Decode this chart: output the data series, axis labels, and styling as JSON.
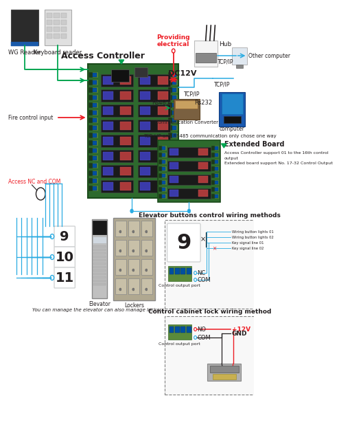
{
  "bg_color": "#ffffff",
  "blue": "#29abe2",
  "green": "#00a651",
  "red": "#ed1c24",
  "dark": "#231f20",
  "gray": "#808080",
  "lgray": "#d1d3d4",
  "pcb_green": "#2d6a2d",
  "pcb_edge": "#1a4a1a",
  "term_green": "#5a8a3a",
  "term_dark": "#1a3a1a",
  "term_blue": "#0050a0",
  "labels": {
    "wg_reader": "WG Reader",
    "kb_reader": "Keyboard reader",
    "access_ctrl": "Access Controller",
    "dc12v": "DC12V",
    "providing": "Providing\nelectrical",
    "hub": "Hub",
    "tcp_ip": "TCP/IP",
    "other_comp": "Other computer",
    "rs485": "Rs485",
    "rs232": "Rs232",
    "comm_conv": "Communication Converter",
    "computer": "computer",
    "tcp_note": "TCP / IP and RS485 communication only chose one way",
    "access_nc": "Access NC and COM",
    "ext_board": "Extended Board",
    "ext_desc1": "Access Controller support 01 to the 16th control",
    "ext_desc1b": "output",
    "ext_desc2": "Extended board support No. 17-32 Control Output",
    "floor9": "9",
    "floor10": "10",
    "floor11": "11",
    "elevator_lbl": "Elevator",
    "lockers_lbl": "Lockers",
    "bottom_note": "You can manage the elevator can also manage lockers",
    "elev_btn_title": "Elevator buttons control wiring methods",
    "btn1": "Wiring button lights 01",
    "btn2": "Wiring button lights 02",
    "key1": "Key signal line 01",
    "key2": "Key signal line 02",
    "nc": "NC",
    "com": "COM",
    "ctrl_port": "Control output port",
    "lock_title": "Control cabinet lock wiring method",
    "no": "NO",
    "plus12v": "+12V",
    "gnd": "GND"
  }
}
